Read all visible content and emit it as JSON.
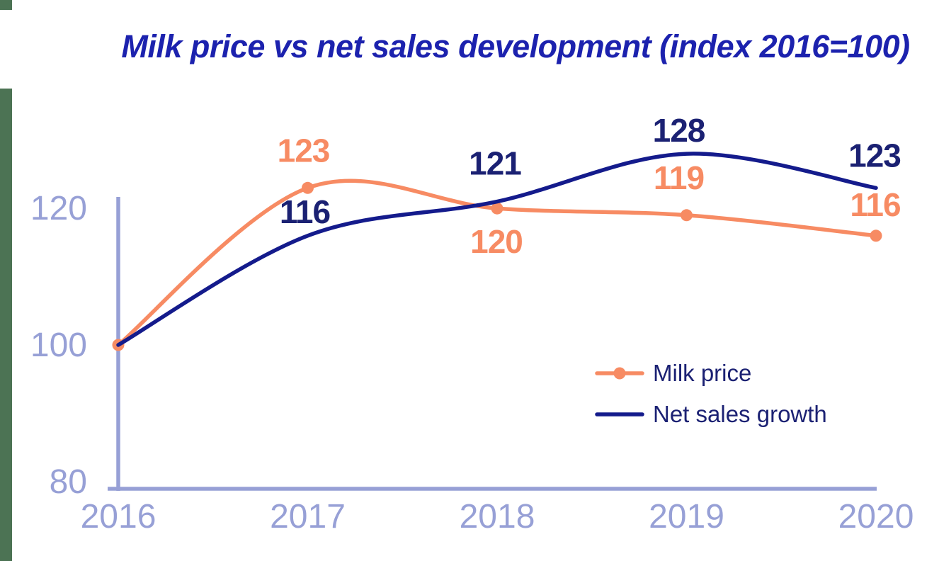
{
  "colors": {
    "accent_green": "#4C7354",
    "title_blue": "#1C22AE",
    "axis_periwinkle": "#97A0D6",
    "milk_orange": "#F78B63",
    "net_sales_navy": "#141B8C",
    "navy_label_text": "#1B2173",
    "legend_text": "#1B2173",
    "background": "#FFFFFF"
  },
  "chart_data": {
    "type": "line",
    "title": "Milk price vs net sales development (index 2016=100)",
    "categories": [
      "2016",
      "2017",
      "2018",
      "2019",
      "2020"
    ],
    "series": [
      {
        "name": "Milk price",
        "values": [
          100,
          123,
          120,
          119,
          116
        ],
        "color": "#F78B63",
        "marker": "circle",
        "data_labels": [
          null,
          "123",
          "120",
          "119",
          "116"
        ],
        "label_offsets": [
          null,
          {
            "dx": -6,
            "dy": -53
          },
          {
            "dx": -1,
            "dy": 47
          },
          {
            "dx": -11,
            "dy": -53
          },
          {
            "dx": -1,
            "dy": -44
          }
        ]
      },
      {
        "name": "Net sales growth",
        "values": [
          100,
          116,
          121,
          128,
          123
        ],
        "color": "#141B8C",
        "marker": "none",
        "label_color": "#1B2173",
        "data_labels": [
          null,
          "116",
          "121",
          "128",
          "123"
        ],
        "label_offsets": [
          null,
          {
            "dx": -4,
            "dy": -34
          },
          {
            "dx": -3,
            "dy": -54
          },
          {
            "dx": -11,
            "dy": -33
          },
          {
            "dx": -2,
            "dy": -46
          }
        ]
      }
    ],
    "y_ticks": [
      "80",
      "100",
      "120"
    ],
    "ylim": [
      80,
      132
    ],
    "xlabel": "",
    "ylabel": "",
    "grid": false,
    "legend_position": "inside-right-middle",
    "index_note": "index 2016=100",
    "smoothing": "spline"
  }
}
